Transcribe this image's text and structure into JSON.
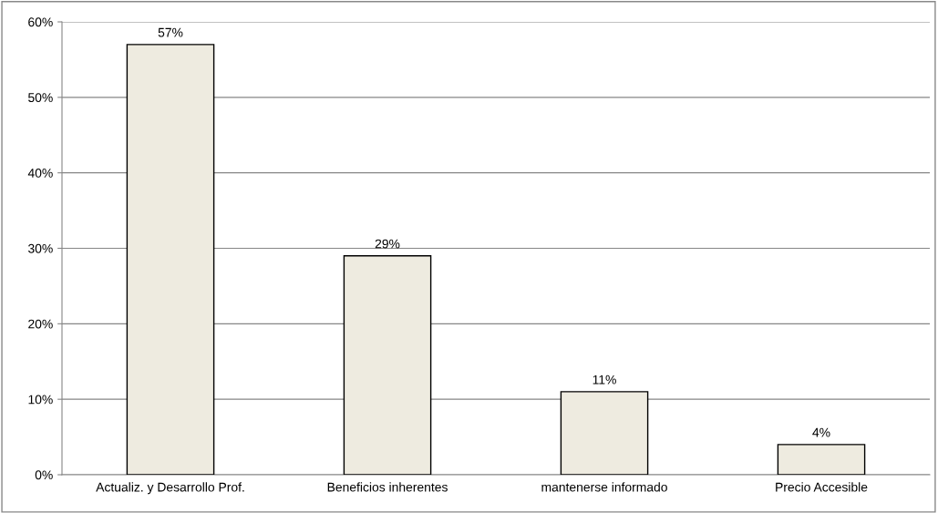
{
  "chart_data": {
    "type": "bar",
    "categories": [
      "Actualiz. y Desarrollo Prof.",
      "Beneficios inherentes",
      "mantenerse informado",
      "Precio Accesible"
    ],
    "values": [
      57,
      29,
      11,
      4
    ],
    "value_labels": [
      "57%",
      "29%",
      "11%",
      "4%"
    ],
    "color": "#eeebe0",
    "ylim": [
      0,
      60
    ],
    "yticks": [
      {
        "value": 0,
        "label": "0%"
      },
      {
        "value": 10,
        "label": "10%"
      },
      {
        "value": 20,
        "label": "20%"
      },
      {
        "value": 30,
        "label": "30%"
      },
      {
        "value": 40,
        "label": "40%"
      },
      {
        "value": 50,
        "label": "50%"
      },
      {
        "value": 60,
        "label": "60%"
      }
    ],
    "grid": "y"
  }
}
